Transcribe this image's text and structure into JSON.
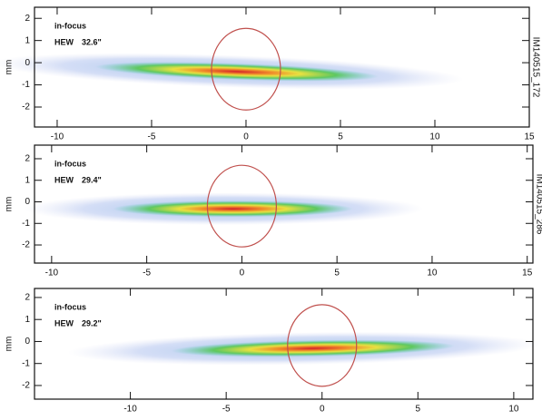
{
  "chart_data": [
    {
      "type": "image",
      "annotations": [
        "in-focus",
        "HEW",
        "32.6\""
      ],
      "y_label": "mm",
      "side_label": "IM140515_172",
      "xlim": [
        -11.2,
        15
      ],
      "ylim": [
        -2.9,
        2.5
      ],
      "xticks": [
        -10,
        -5,
        0,
        5,
        10,
        15
      ],
      "yticks": [
        -2,
        -1,
        0,
        1,
        2
      ]
    },
    {
      "type": "image",
      "annotations": [
        "in-focus",
        "HEW",
        "29.4\""
      ],
      "y_label": "mm",
      "side_label": "IM140515_286",
      "xlim": [
        -10.9,
        15.3
      ],
      "ylim": [
        -2.84,
        2.63
      ],
      "xticks": [
        -10,
        -5,
        0,
        5,
        10,
        15
      ],
      "yticks": [
        -2,
        -1,
        0,
        1,
        2
      ]
    },
    {
      "type": "image",
      "annotations": [
        "in-focus",
        "HEW",
        "29.2\""
      ],
      "y_label": "mm",
      "xlim": [
        -15,
        11
      ],
      "ylim": [
        -2.62,
        2.41
      ],
      "xticks": [
        -10,
        -5,
        0,
        5,
        10
      ],
      "yticks": [
        -2,
        -1,
        0,
        1,
        2
      ]
    }
  ]
}
